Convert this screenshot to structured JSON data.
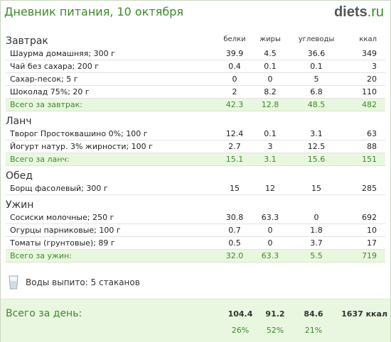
{
  "header": {
    "title": "Дневник питания, 10 октября",
    "logo_main": "diets",
    "logo_suffix": ".ru"
  },
  "columns": {
    "protein": "белки",
    "fat": "жиры",
    "carbs": "углеводы",
    "kcal": "ккал"
  },
  "meals": [
    {
      "name": "Завтрак",
      "items": [
        {
          "name": "Шаурма домашняя; 300 г",
          "protein": "39.9",
          "fat": "4.5",
          "carbs": "36.6",
          "kcal": "349"
        },
        {
          "name": "Чай без сахара; 200 г",
          "protein": "0.4",
          "fat": "0.1",
          "carbs": "0.1",
          "kcal": "3"
        },
        {
          "name": "Сахар-песок; 5 г",
          "protein": "0",
          "fat": "0",
          "carbs": "5",
          "kcal": "20"
        },
        {
          "name": "Шоколад 75%; 20 г",
          "protein": "2",
          "fat": "8.2",
          "carbs": "6.8",
          "kcal": "110"
        }
      ],
      "total": {
        "label": "Всего за завтрак:",
        "protein": "42.3",
        "fat": "12.8",
        "carbs": "48.5",
        "kcal": "482"
      }
    },
    {
      "name": "Ланч",
      "items": [
        {
          "name": "Творог Простоквашино 0%; 100 г",
          "protein": "12.4",
          "fat": "0.1",
          "carbs": "3.1",
          "kcal": "63"
        },
        {
          "name": "Йогурт натур. 3% жирности; 100 г",
          "protein": "2.7",
          "fat": "3",
          "carbs": "12.5",
          "kcal": "88"
        }
      ],
      "total": {
        "label": "Всего за ланч:",
        "protein": "15.1",
        "fat": "3.1",
        "carbs": "15.6",
        "kcal": "151"
      }
    },
    {
      "name": "Обед",
      "items": [
        {
          "name": "Борщ фасолевый; 300 г",
          "protein": "15",
          "fat": "12",
          "carbs": "15",
          "kcal": "285"
        }
      ]
    },
    {
      "name": "Ужин",
      "items": [
        {
          "name": "Сосиски молочные; 250 г",
          "protein": "30.8",
          "fat": "63.3",
          "carbs": "0",
          "kcal": "692"
        },
        {
          "name": "Огурцы парниковые; 100 г",
          "protein": "0.7",
          "fat": "0",
          "carbs": "1.8",
          "kcal": "10"
        },
        {
          "name": "Томаты (грунтовые); 89 г",
          "protein": "0.5",
          "fat": "0",
          "carbs": "3.7",
          "kcal": "17"
        }
      ],
      "total": {
        "label": "Всего за ужин:",
        "protein": "32.0",
        "fat": "63.3",
        "carbs": "5.5",
        "kcal": "719"
      }
    }
  ],
  "water": {
    "icon": "water-glass-icon",
    "label": "Воды выпито:",
    "value": "5 стаканов"
  },
  "day_total": {
    "label": "Всего за день:",
    "protein": "104.4",
    "fat": "91.2",
    "carbs": "84.6",
    "kcal": "1637 ккал",
    "protein_pct": "26%",
    "fat_pct": "52%",
    "carbs_pct": "21%"
  },
  "colors": {
    "accent": "#3a8a2a",
    "summary_bg": "#eaf7e0"
  }
}
